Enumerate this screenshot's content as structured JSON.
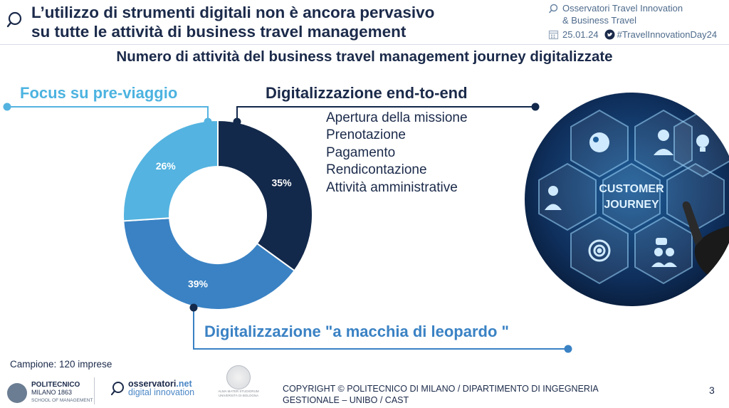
{
  "header": {
    "title_line1": "L’utilizzo di strumenti digitali non è ancora pervasivo",
    "title_line2": "su tutte le attività di business travel management",
    "org_line1": "Osservatori Travel Innovation",
    "org_line2": "& Business Travel",
    "date": "25.01.24",
    "hashtag": "#TravelInnovationDay24"
  },
  "subtitle": "Numero di attività del business travel management journey digitalizzate",
  "chart_data": {
    "type": "pie",
    "variant": "donut",
    "slices": [
      {
        "label": "Digitalizzazione end-to-end",
        "value": 35,
        "display": "35%",
        "color": "#13294b"
      },
      {
        "label": "Digitalizzazione \"a macchia di leopardo \"",
        "value": 39,
        "display": "39%",
        "color": "#3a82c4"
      },
      {
        "label": "Focus su pre-viaggio",
        "value": 26,
        "display": "26%",
        "color": "#54b3e0"
      }
    ]
  },
  "labels": {
    "pre_viaggio": "Focus su pre-viaggio",
    "end_to_end": "Digitalizzazione end-to-end",
    "leopardo": "Digitalizzazione \"a macchia di leopardo \""
  },
  "end_to_end_items": [
    "Apertura della missione",
    "Prenotazione",
    "Pagamento",
    "Rendicontazione",
    "Attività amministrative"
  ],
  "hero_image": {
    "center_text_line1": "CUSTOMER",
    "center_text_line2": "JOURNEY"
  },
  "footer": {
    "sample": "Campione: 120 imprese",
    "poli_name": "POLITECNICO",
    "poli_city": "MILANO 1863",
    "poli_school": "SCHOOL OF MANAGEMENT",
    "oss_name": "osservatori",
    "oss_net": ".net",
    "oss_sub": "digital innovation",
    "unibo_line1": "ALMA MATER STUDIORUM",
    "unibo_line2": "UNIVERSITÀ DI BOLOGNA",
    "copyright_line1": "COPYRIGHT © POLITECNICO DI MILANO / DIPARTIMENTO DI INGEGNERIA",
    "copyright_line2": "GESTIONALE – UNIBO / CAST",
    "page": "3"
  },
  "colors": {
    "navy": "#13294b",
    "mid_blue": "#3a82c4",
    "light_blue": "#54b3e0"
  }
}
